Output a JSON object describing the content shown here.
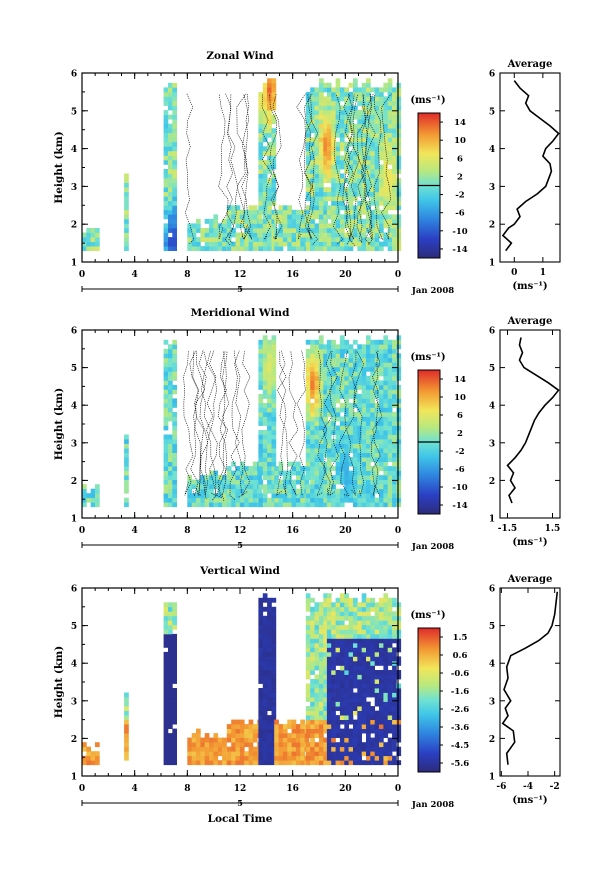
{
  "chart_data": [
    {
      "type": "heatmap",
      "title": "Zonal Wind",
      "ylabel": "Height (km)",
      "x_ticks": [
        "0",
        "4",
        "8",
        "12",
        "16",
        "20",
        "0"
      ],
      "y_ticks": [
        "1",
        "2",
        "3",
        "4",
        "5",
        "6"
      ],
      "xlim": [
        0,
        24
      ],
      "ylim": [
        1,
        6
      ],
      "date_marker": "5",
      "date_label": "Jan 2008",
      "unit": "(ms⁻¹)",
      "colorbar_ticks": [
        "14",
        "10",
        "6",
        "2",
        "-2",
        "-6",
        "-10",
        "-14"
      ],
      "colorbar_range": [
        -16,
        16
      ],
      "sampling_mask": [
        [
          0.0,
          1.3,
          1.9
        ],
        [
          3.2,
          3.5,
          3.3
        ],
        [
          6.2,
          6.9,
          5.8
        ],
        [
          8.0,
          11.0,
          2.2
        ],
        [
          11.0,
          13.4,
          2.5
        ],
        [
          13.4,
          14.6,
          5.8
        ],
        [
          14.6,
          17.0,
          2.5
        ],
        [
          17.0,
          18.0,
          5.8
        ],
        [
          18.0,
          18.6,
          5.8
        ],
        [
          18.6,
          24.0,
          5.8
        ]
      ],
      "notable_values": [
        {
          "x": 14.1,
          "y": 5.5,
          "v": 14
        },
        {
          "x": 18.4,
          "y": 4.0,
          "v": 13
        },
        {
          "x": 6.7,
          "y": 1.5,
          "v": -13
        },
        {
          "x": 23.1,
          "y": 3.2,
          "v": 8
        }
      ],
      "average_profile": {
        "title": "Average",
        "xlabel": "(ms⁻¹)",
        "x_ticks": [
          "0",
          "1"
        ],
        "xlim": [
          -0.5,
          1.6
        ],
        "y_ticks": [
          "1",
          "2",
          "3",
          "4",
          "5",
          "6"
        ],
        "ylim": [
          1,
          6
        ],
        "profile": [
          [
            1.3,
            -0.3
          ],
          [
            1.5,
            -0.1
          ],
          [
            1.7,
            -0.4
          ],
          [
            1.9,
            -0.2
          ],
          [
            2.0,
            0.0
          ],
          [
            2.2,
            0.2
          ],
          [
            2.4,
            0.1
          ],
          [
            2.6,
            0.4
          ],
          [
            2.8,
            0.8
          ],
          [
            3.0,
            1.1
          ],
          [
            3.2,
            1.2
          ],
          [
            3.4,
            1.3
          ],
          [
            3.6,
            1.25
          ],
          [
            3.8,
            1.0
          ],
          [
            4.0,
            1.1
          ],
          [
            4.2,
            1.35
          ],
          [
            4.4,
            1.55
          ],
          [
            4.6,
            1.25
          ],
          [
            4.8,
            0.9
          ],
          [
            5.0,
            0.55
          ],
          [
            5.2,
            0.4
          ],
          [
            5.4,
            0.5
          ],
          [
            5.6,
            0.2
          ],
          [
            5.8,
            0.0
          ]
        ]
      }
    },
    {
      "type": "heatmap",
      "title": "Meridional Wind",
      "ylabel": "Height (km)",
      "x_ticks": [
        "0",
        "4",
        "8",
        "12",
        "16",
        "20",
        "0"
      ],
      "y_ticks": [
        "1",
        "2",
        "3",
        "4",
        "5",
        "6"
      ],
      "xlim": [
        0,
        24
      ],
      "ylim": [
        1,
        6
      ],
      "date_marker": "5",
      "date_label": "Jan 2008",
      "unit": "(ms⁻¹)",
      "colorbar_ticks": [
        "14",
        "10",
        "6",
        "2",
        "-2",
        "-6",
        "-10",
        "-14"
      ],
      "colorbar_range": [
        -16,
        16
      ],
      "sampling_mask": [
        [
          0.0,
          1.3,
          1.9
        ],
        [
          3.2,
          3.5,
          3.3
        ],
        [
          6.2,
          6.9,
          5.8
        ],
        [
          8.0,
          11.0,
          2.2
        ],
        [
          11.0,
          13.4,
          2.5
        ],
        [
          13.4,
          14.6,
          5.8
        ],
        [
          14.6,
          17.0,
          2.5
        ],
        [
          17.0,
          18.0,
          5.8
        ],
        [
          18.0,
          18.6,
          5.8
        ],
        [
          18.6,
          24.0,
          5.8
        ]
      ],
      "notable_values": [
        {
          "x": 17.4,
          "y": 4.5,
          "v": 14
        },
        {
          "x": 14.1,
          "y": 5.0,
          "v": 6
        },
        {
          "x": 20.0,
          "y": 2.0,
          "v": -5
        }
      ],
      "average_profile": {
        "title": "Average",
        "xlabel": "(ms⁻¹)",
        "x_ticks": [
          "-1.5",
          "1.5"
        ],
        "xlim": [
          -2.0,
          2.0
        ],
        "y_ticks": [
          "1",
          "2",
          "3",
          "4",
          "5",
          "6"
        ],
        "ylim": [
          1,
          6
        ],
        "profile": [
          [
            1.4,
            -1.2
          ],
          [
            1.6,
            -1.4
          ],
          [
            1.8,
            -1.0
          ],
          [
            2.0,
            -1.3
          ],
          [
            2.2,
            -1.1
          ],
          [
            2.4,
            -1.5
          ],
          [
            2.6,
            -1.0
          ],
          [
            2.8,
            -0.6
          ],
          [
            3.0,
            -0.3
          ],
          [
            3.2,
            -0.1
          ],
          [
            3.4,
            0.1
          ],
          [
            3.6,
            0.3
          ],
          [
            3.8,
            0.6
          ],
          [
            4.0,
            1.0
          ],
          [
            4.2,
            1.5
          ],
          [
            4.4,
            1.9
          ],
          [
            4.6,
            1.2
          ],
          [
            4.8,
            0.4
          ],
          [
            5.0,
            -0.4
          ],
          [
            5.2,
            -0.7
          ],
          [
            5.4,
            -0.5
          ],
          [
            5.6,
            -0.7
          ],
          [
            5.8,
            -0.6
          ]
        ]
      }
    },
    {
      "type": "heatmap",
      "title": "Vertical Wind",
      "ylabel": "Height (km)",
      "xlabel": "Local Time",
      "x_ticks": [
        "0",
        "4",
        "8",
        "12",
        "16",
        "20",
        "0"
      ],
      "y_ticks": [
        "1",
        "2",
        "3",
        "4",
        "5",
        "6"
      ],
      "xlim": [
        0,
        24
      ],
      "ylim": [
        1,
        6
      ],
      "date_marker": "5",
      "date_label": "Jan 2008",
      "unit": "(ms⁻¹)",
      "colorbar_ticks": [
        "1.5",
        "0.6",
        "-0.6",
        "-1.6",
        "-2.6",
        "-3.6",
        "-4.5",
        "-5.6"
      ],
      "colorbar_range": [
        -6.1,
        2.0
      ],
      "sampling_mask": [
        [
          0.0,
          1.3,
          1.9
        ],
        [
          3.2,
          3.5,
          3.3
        ],
        [
          6.2,
          6.9,
          5.8
        ],
        [
          8.0,
          11.0,
          2.2
        ],
        [
          11.0,
          13.4,
          2.5
        ],
        [
          13.4,
          14.6,
          5.8
        ],
        [
          14.6,
          17.0,
          2.5
        ],
        [
          17.0,
          18.0,
          5.8
        ],
        [
          18.0,
          18.6,
          5.8
        ],
        [
          18.6,
          24.0,
          5.8
        ]
      ],
      "notable_values": [
        {
          "x": 6.6,
          "y": 3.0,
          "v": -5.8
        },
        {
          "x": 14.0,
          "y": 3.5,
          "v": -5.8
        },
        {
          "x": 21.0,
          "y": 3.0,
          "v": -5.8
        },
        {
          "x": 3.0,
          "y": 1.8,
          "v": 0.6
        }
      ],
      "average_profile": {
        "title": "Average",
        "xlabel": "(ms⁻¹)",
        "x_ticks": [
          "-6",
          "-4",
          "-2"
        ],
        "xlim": [
          -6.1,
          -1.6
        ],
        "y_ticks": [
          "1",
          "2",
          "3",
          "4",
          "5",
          "6"
        ],
        "ylim": [
          1,
          6
        ],
        "profile": [
          [
            1.3,
            -5.5
          ],
          [
            1.6,
            -5.6
          ],
          [
            1.9,
            -5.0
          ],
          [
            2.2,
            -5.1
          ],
          [
            2.4,
            -5.9
          ],
          [
            2.6,
            -5.5
          ],
          [
            2.8,
            -5.7
          ],
          [
            3.0,
            -5.3
          ],
          [
            3.3,
            -5.8
          ],
          [
            3.6,
            -5.5
          ],
          [
            3.9,
            -5.6
          ],
          [
            4.2,
            -5.3
          ],
          [
            4.4,
            -4.2
          ],
          [
            4.6,
            -3.2
          ],
          [
            4.8,
            -2.5
          ],
          [
            5.0,
            -2.2
          ],
          [
            5.3,
            -2.0
          ],
          [
            5.6,
            -1.9
          ],
          [
            5.9,
            -1.8
          ]
        ]
      }
    }
  ]
}
